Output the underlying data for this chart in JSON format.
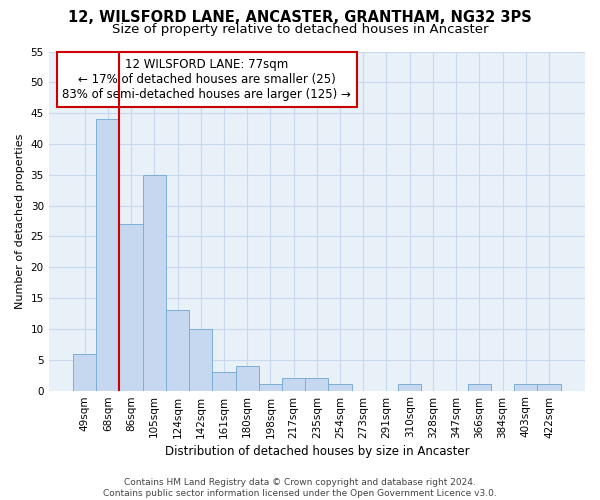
{
  "title1": "12, WILSFORD LANE, ANCASTER, GRANTHAM, NG32 3PS",
  "title2": "Size of property relative to detached houses in Ancaster",
  "xlabel": "Distribution of detached houses by size in Ancaster",
  "ylabel": "Number of detached properties",
  "categories": [
    "49sqm",
    "68sqm",
    "86sqm",
    "105sqm",
    "124sqm",
    "142sqm",
    "161sqm",
    "180sqm",
    "198sqm",
    "217sqm",
    "235sqm",
    "254sqm",
    "273sqm",
    "291sqm",
    "310sqm",
    "328sqm",
    "347sqm",
    "366sqm",
    "384sqm",
    "403sqm",
    "422sqm"
  ],
  "values": [
    6,
    44,
    27,
    35,
    13,
    10,
    3,
    4,
    1,
    2,
    2,
    1,
    0,
    0,
    1,
    0,
    0,
    1,
    0,
    1,
    1
  ],
  "bar_color": "#c5d8f0",
  "bar_edge_color": "#7bafd4",
  "grid_color": "#c8d8ee",
  "bg_color": "#e8f0f8",
  "annotation_line1": "12 WILSFORD LANE: 77sqm",
  "annotation_line2": "← 17% of detached houses are smaller (25)",
  "annotation_line3": "83% of semi-detached houses are larger (125) →",
  "annotation_box_color": "#ffffff",
  "annotation_box_edge": "#cc0000",
  "vline_x": 1.5,
  "vline_color": "#cc0000",
  "ylim": [
    0,
    55
  ],
  "yticks": [
    0,
    5,
    10,
    15,
    20,
    25,
    30,
    35,
    40,
    45,
    50,
    55
  ],
  "footer": "Contains HM Land Registry data © Crown copyright and database right 2024.\nContains public sector information licensed under the Open Government Licence v3.0.",
  "title1_fontsize": 10.5,
  "title2_fontsize": 9.5,
  "xlabel_fontsize": 8.5,
  "ylabel_fontsize": 8,
  "tick_fontsize": 7.5,
  "annotation_fontsize": 8.5,
  "footer_fontsize": 6.5
}
